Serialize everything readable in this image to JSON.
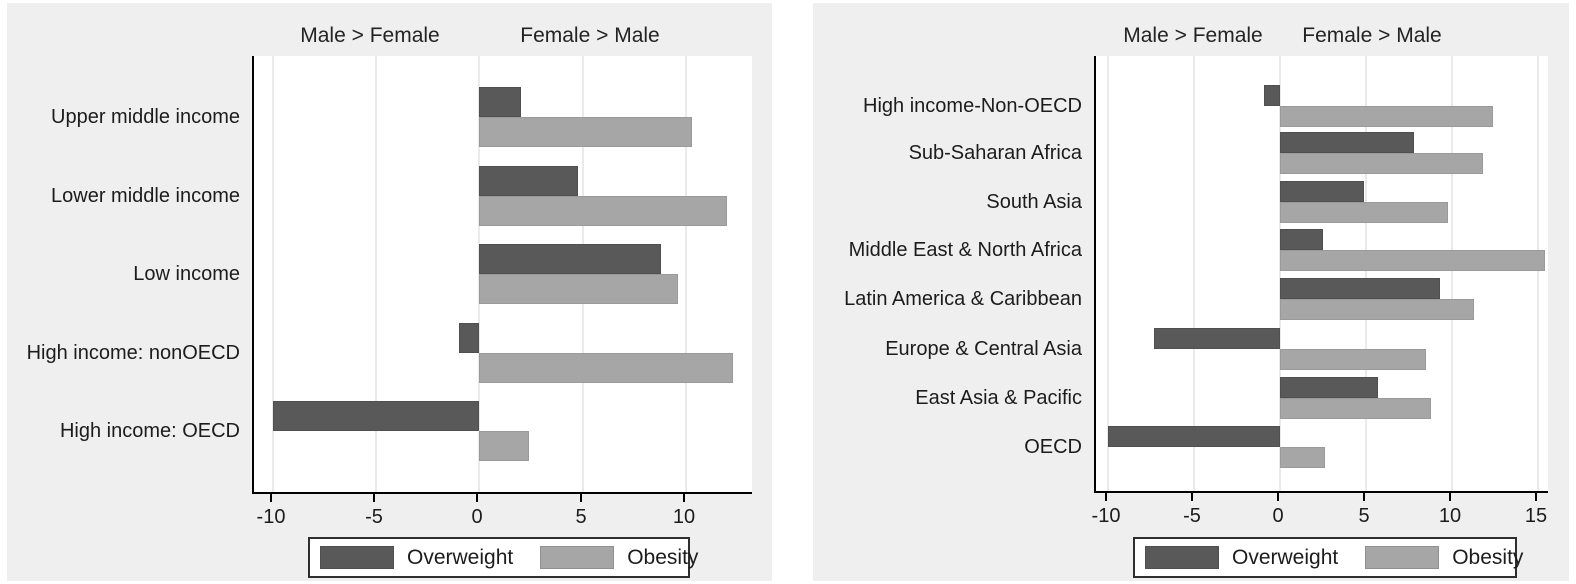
{
  "figure": {
    "background": "#ffffff",
    "panel_background": "#efefef",
    "plot_background": "#ffffff",
    "grid_color": "#eaeaea",
    "axis_color": "#000000",
    "text_color": "#1c1c1c",
    "series_colors": {
      "Overweight": "#595959",
      "Obesity": "#a6a6a6"
    }
  },
  "chart_data": [
    {
      "type": "bar",
      "orientation": "horizontal",
      "title_left": "Male > Female",
      "title_right": "Female > Male",
      "categories": [
        "Upper middle income",
        "Lower middle income",
        "Low income",
        "High income: nonOECD",
        "High income: OECD"
      ],
      "series": [
        {
          "name": "Overweight",
          "color": "#595959",
          "values": [
            2.0,
            4.8,
            8.8,
            -1.0,
            -10.0
          ]
        },
        {
          "name": "Obesity",
          "color": "#a6a6a6",
          "values": [
            10.3,
            12.0,
            9.6,
            12.3,
            2.4
          ]
        }
      ],
      "x_ticks": [
        -10,
        -5,
        0,
        5,
        10
      ],
      "xlim": [
        -10.9,
        13.2
      ],
      "grid": true,
      "legend": [
        "Overweight",
        "Obesity"
      ],
      "legend_position": "bottom-right"
    },
    {
      "type": "bar",
      "orientation": "horizontal",
      "title_left": "Male > Female",
      "title_right": "Female > Male",
      "categories": [
        "High income-Non-OECD",
        "Sub-Saharan Africa",
        "South Asia",
        "Middle East & North Africa",
        "Latin America & Caribbean",
        "Europe & Central Asia",
        "East Asia & Pacific",
        "OECD"
      ],
      "series": [
        {
          "name": "Overweight",
          "color": "#595959",
          "values": [
            -0.9,
            7.8,
            4.9,
            2.5,
            9.3,
            -7.3,
            5.7,
            -10.0
          ]
        },
        {
          "name": "Obesity",
          "color": "#a6a6a6",
          "values": [
            12.4,
            11.8,
            9.8,
            15.4,
            11.3,
            8.5,
            8.8,
            2.6
          ]
        }
      ],
      "x_ticks": [
        -10,
        -5,
        0,
        5,
        10,
        15
      ],
      "xlim": [
        -10.7,
        15.6
      ],
      "grid": true,
      "legend": [
        "Overweight",
        "Obesity"
      ],
      "legend_position": "bottom-right"
    }
  ]
}
